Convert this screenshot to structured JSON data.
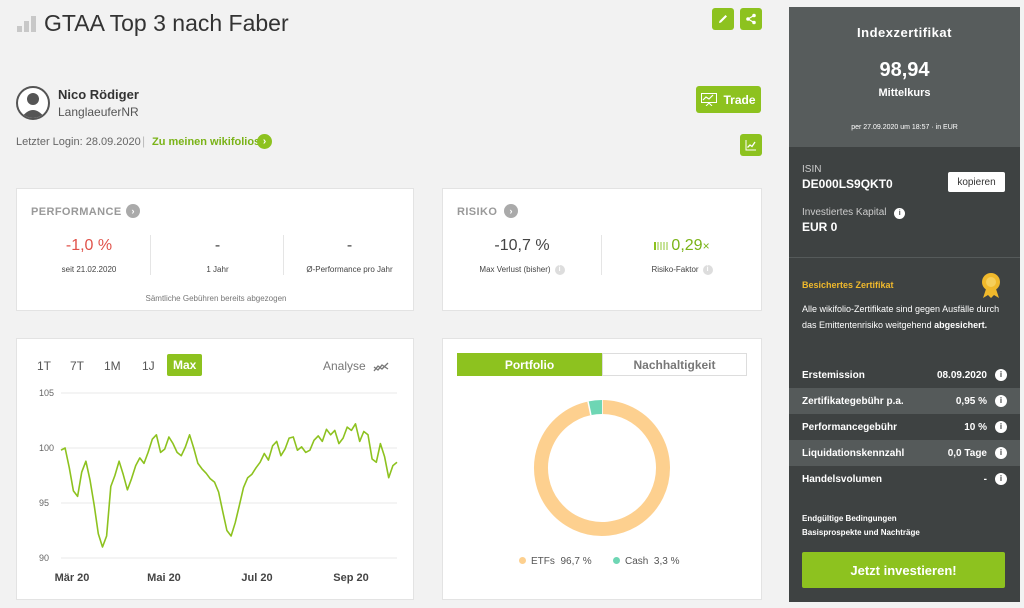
{
  "header": {
    "title": "GTAA Top 3 nach Faber",
    "edit_icon": "pencil-icon",
    "share_icon": "share-icon"
  },
  "user": {
    "name": "Nico Rödiger",
    "handle": "LanglaeuferNR",
    "last_login": "Letzter Login: 28.09.2020",
    "wikifolios_link": "Zu meinen wikifolios"
  },
  "trade_button": "Trade",
  "performance": {
    "title": "PERFORMANCE",
    "items": [
      {
        "value": "-1,0 %",
        "label": "seit 21.02.2020",
        "color": "#e0524a"
      },
      {
        "value": "-",
        "label": "1 Jahr"
      },
      {
        "value": "-",
        "label": "Ø-Performance pro Jahr"
      }
    ],
    "footnote": "Sämtliche Gebühren bereits abgezogen"
  },
  "risk": {
    "title": "RISIKO",
    "max_loss_value": "-10,7 %",
    "max_loss_label": "Max Verlust (bisher)",
    "factor_value": "0,29",
    "factor_suffix": "×",
    "factor_label": "Risiko-Faktor"
  },
  "chart_tabs": {
    "t1": "1T",
    "t2": "7T",
    "t3": "1M",
    "t4": "1J",
    "t5": "Max",
    "active": "Max",
    "analyse": "Analyse"
  },
  "chart_data": {
    "type": "line",
    "y_ticks": [
      "105",
      "100",
      "95",
      "90"
    ],
    "ylim": [
      90,
      105
    ],
    "x_ticks": [
      "Mär 20",
      "Mai 20",
      "Jul 20",
      "Sep 20"
    ],
    "series": [
      {
        "values": [
          99.8,
          100.0,
          98.2,
          96.1,
          95.6,
          97.8,
          98.8,
          97.1,
          94.8,
          92.2,
          91.0,
          92.0,
          96.5,
          97.5,
          98.8,
          97.6,
          96.2,
          97.2,
          98.4,
          99.1,
          98.6,
          99.6,
          100.8,
          101.2,
          99.6,
          99.9,
          101.0,
          100.4,
          99.6,
          99.3,
          100.1,
          101.2,
          100.0,
          98.6,
          98.1,
          97.7,
          97.2,
          96.9,
          96.0,
          94.2,
          92.5,
          92.0,
          93.2,
          94.8,
          96.4,
          97.3,
          97.6,
          98.2,
          98.7,
          99.5,
          98.9,
          100.2,
          100.6,
          99.3,
          99.9,
          100.9,
          101.0,
          99.8,
          100.1,
          99.6,
          99.8,
          100.7,
          101.1,
          100.6,
          101.7,
          101.2,
          101.6,
          100.4,
          100.9,
          101.9,
          101.6,
          102.2,
          100.6,
          101.5,
          101.2,
          99.0,
          98.7,
          100.4,
          99.2,
          97.3,
          98.4,
          98.7
        ],
        "color": "#8dc21f"
      }
    ]
  },
  "portfolio": {
    "tab_active": "Portfolio",
    "tab_other": "Nachhaltigkeit",
    "chart_data": {
      "type": "pie",
      "slices": [
        {
          "label": "ETFs",
          "value": 96.7,
          "value_label": "96,7 %",
          "color": "#fdd08f"
        },
        {
          "label": "Cash",
          "value": 3.3,
          "value_label": "3,3 %",
          "color": "#6ed6b4"
        }
      ]
    }
  },
  "side": {
    "title": "Indexzertifikat",
    "price": "98,94",
    "price_label": "Mittelkurs",
    "price_note": "per 27.09.2020 um 18:57 · in EUR",
    "isin_label": "ISIN",
    "isin": "DE000LS9QKT0",
    "copy_button": "kopieren",
    "capital_label": "Investiertes Kapital",
    "capital": "EUR 0",
    "secured_title": "Besichertes Zertifikat",
    "secured_text": "Alle wikifolio-Zertifikate sind gegen Ausfälle durch das Emittentenrisiko weitgehend",
    "secured_bold": "abgesichert.",
    "rows": [
      {
        "label": "Erstemission",
        "value": "08.09.2020"
      },
      {
        "label": "Zertifikategebühr p.a.",
        "value": "0,95 %"
      },
      {
        "label": "Performancegebühr",
        "value": "10 %"
      },
      {
        "label": "Liquidationskennzahl",
        "value": "0,0 Tage"
      },
      {
        "label": "Handelsvolumen",
        "value": "-"
      }
    ],
    "link1": "Endgültige Bedingungen",
    "link2": "Basisprospekte und Nachträge",
    "cta": "Jetzt investieren!",
    "accent": "#f0b92c"
  }
}
